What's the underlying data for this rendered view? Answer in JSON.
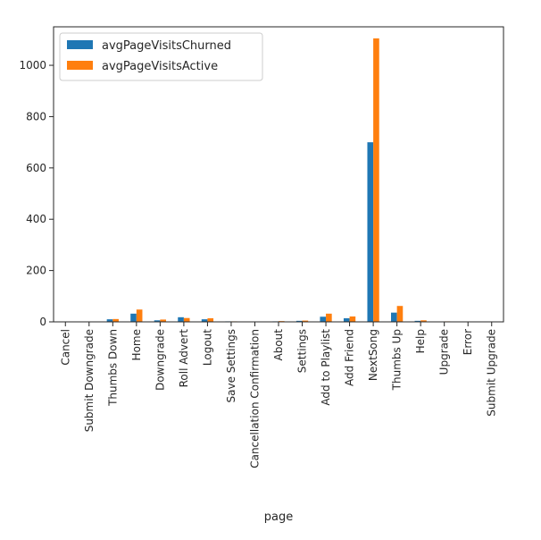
{
  "chart_data": {
    "type": "bar",
    "title": "",
    "xlabel": "page",
    "ylabel": "",
    "ylim": [
      0,
      1150
    ],
    "yticks": [
      0,
      200,
      400,
      600,
      800,
      1000
    ],
    "grid": false,
    "legend_position": "top-left",
    "categories": [
      "Cancel",
      "Submit Downgrade",
      "Thumbs Down",
      "Home",
      "Downgrade",
      "Roll Advert",
      "Logout",
      "Save Settings",
      "Cancellation Confirmation",
      "About",
      "Settings",
      "Add to Playlist",
      "Add Friend",
      "NextSong",
      "Thumbs Up",
      "Help",
      "Upgrade",
      "Error",
      "Submit Upgrade"
    ],
    "series": [
      {
        "name": "avgPageVisitsChurned",
        "color": "#1f77b4",
        "values": [
          1,
          1,
          10,
          32,
          6,
          18,
          10,
          2,
          1,
          2,
          4,
          20,
          14,
          700,
          36,
          4,
          1,
          1,
          1
        ]
      },
      {
        "name": "avgPageVisitsActive",
        "color": "#ff7f0e",
        "values": [
          0,
          1,
          11,
          48,
          9,
          15,
          14,
          2,
          0,
          3,
          5,
          32,
          21,
          1105,
          62,
          6,
          2,
          1,
          1
        ]
      }
    ]
  }
}
